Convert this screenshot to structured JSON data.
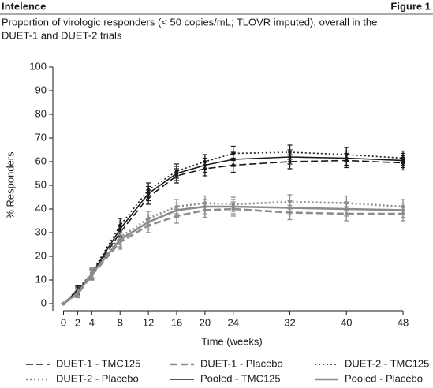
{
  "chart_data": {
    "type": "line",
    "header": "Intelence",
    "figure_label": "Figure 1",
    "subtitle_lines": [
      "Proportion of virologic responders (< 50 copies/mL; TLOVR imputed), overall in the",
      "DUET-1 and DUET-2 trials"
    ],
    "xlabel": "Time (weeks)",
    "ylabel": "% Responders",
    "x": [
      0,
      2,
      4,
      8,
      12,
      16,
      20,
      24,
      32,
      40,
      48
    ],
    "xlim": [
      -1.5,
      49
    ],
    "xticks": [
      0,
      2,
      4,
      8,
      12,
      16,
      20,
      24,
      32,
      40,
      48
    ],
    "ylim": [
      -3,
      100
    ],
    "yticks": [
      0,
      10,
      20,
      30,
      40,
      50,
      60,
      70,
      80,
      90,
      100
    ],
    "series": [
      {
        "name": "DUET-1 - TMC125",
        "color": "#1a1a1a",
        "dash": "dashed",
        "values": [
          0,
          5,
          12,
          30,
          45,
          54,
          57,
          58.5,
          60,
          60.5,
          59.5
        ],
        "errors": [
          0,
          1.5,
          2,
          3,
          3,
          3,
          3,
          3,
          3,
          3,
          3
        ]
      },
      {
        "name": "DUET-1 - Placebo",
        "color": "#8c8c8c",
        "dash": "dashed",
        "values": [
          0,
          4,
          12,
          26,
          33,
          37,
          39.5,
          40,
          38.5,
          38,
          38
        ],
        "errors": [
          0,
          1.5,
          2,
          3,
          3,
          3,
          3,
          3,
          3,
          3,
          3
        ]
      },
      {
        "name": "DUET-2 - TMC125",
        "color": "#1a1a1a",
        "dash": "dotted",
        "values": [
          0,
          6,
          13,
          33,
          48,
          56,
          60,
          63.5,
          64,
          63,
          61.5
        ],
        "errors": [
          0,
          1.5,
          2,
          3,
          3,
          3,
          3,
          3,
          3,
          3,
          3
        ]
      },
      {
        "name": "DUET-2 - Placebo",
        "color": "#8c8c8c",
        "dash": "dotted",
        "values": [
          0,
          5,
          13,
          28,
          36,
          41,
          42.5,
          42,
          43,
          42.5,
          41
        ],
        "errors": [
          0,
          1.5,
          2,
          3,
          3,
          3,
          3,
          3,
          3,
          3,
          3
        ]
      },
      {
        "name": "Pooled - TMC125",
        "color": "#1a1a1a",
        "dash": "solid",
        "values": [
          0,
          5.5,
          12.5,
          31.5,
          46.5,
          55,
          58.5,
          61,
          62,
          61.5,
          60.5
        ],
        "errors": [
          0,
          1.5,
          2,
          3,
          3,
          3,
          3,
          3,
          3,
          3,
          3
        ]
      },
      {
        "name": "Pooled - Placebo",
        "color": "#8c8c8c",
        "dash": "solid",
        "values": [
          0,
          4.5,
          12.5,
          27,
          34.5,
          39.5,
          41,
          41,
          40.5,
          40,
          39.5
        ],
        "errors": [
          0,
          1.5,
          2,
          3,
          3,
          3,
          3,
          3,
          3,
          3,
          3
        ]
      }
    ]
  }
}
